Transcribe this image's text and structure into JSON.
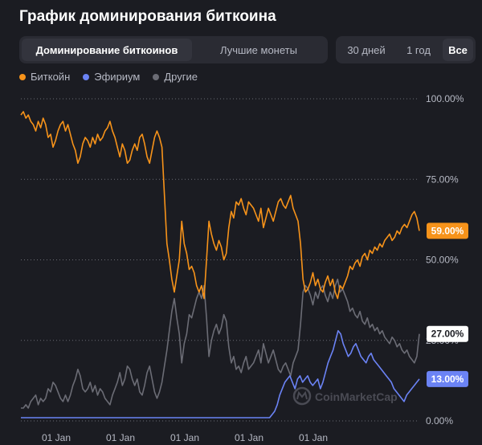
{
  "title": "График доминирования биткоина",
  "tabs": [
    {
      "label": "Доминирование биткоинов",
      "active": true
    },
    {
      "label": "Лучшие монеты",
      "active": false
    }
  ],
  "ranges": [
    {
      "label": "30 дней",
      "active": false
    },
    {
      "label": "1 год",
      "active": false
    },
    {
      "label": "Все",
      "active": true
    }
  ],
  "watermark": "CoinMarketCap",
  "colors": {
    "bitcoin": "#f7931a",
    "ethereum": "#6b83f5",
    "others": "#6b6c75"
  },
  "chart_data": {
    "type": "line",
    "ylim": [
      0,
      100
    ],
    "y_ticks": [
      "100.00%",
      "75.00%",
      "50.00%",
      "25.00%",
      "0.00%"
    ],
    "x_ticks": [
      "01 Jan",
      "01 Jan",
      "01 Jan",
      "01 Jan",
      "01 Jan"
    ],
    "legend": [
      "Биткойн",
      "Эфириум",
      "Другие"
    ],
    "legend_position": "top-left",
    "grid": true,
    "latest": {
      "bitcoin": "59.00%",
      "others": "27.00%",
      "ethereum": "13.00%"
    },
    "series": [
      {
        "name": "Биткойн",
        "color": "#f7931a",
        "values": [
          95,
          96,
          94,
          95,
          93,
          92,
          90,
          93,
          91,
          94,
          92,
          88,
          89,
          85,
          87,
          90,
          92,
          93,
          90,
          92,
          89,
          86,
          84,
          80,
          82,
          86,
          88,
          87,
          85,
          88,
          86,
          89,
          87,
          88,
          90,
          91,
          93,
          90,
          88,
          85,
          82,
          86,
          84,
          80,
          81,
          84,
          86,
          84,
          88,
          89,
          86,
          82,
          80,
          84,
          88,
          90,
          88,
          85,
          70,
          55,
          50,
          44,
          40,
          45,
          50,
          62,
          55,
          52,
          47,
          48,
          46,
          42,
          40,
          42,
          38,
          50,
          62,
          58,
          55,
          53,
          56,
          54,
          50,
          52,
          60,
          65,
          63,
          68,
          67,
          69,
          66,
          64,
          68,
          67,
          66,
          64,
          62,
          66,
          60,
          63,
          66,
          64,
          62,
          65,
          68,
          69,
          67,
          66,
          68,
          70,
          66,
          64,
          62,
          55,
          44,
          40,
          41,
          43,
          46,
          42,
          44,
          41,
          40,
          43,
          45,
          42,
          44,
          40,
          38,
          42,
          41,
          43,
          45,
          48,
          47,
          49,
          50,
          48,
          51,
          52,
          50,
          53,
          52,
          54,
          53,
          55,
          54,
          56,
          57,
          58,
          56,
          57,
          59,
          58,
          60,
          61,
          60,
          62,
          64,
          65,
          63,
          59
        ]
      },
      {
        "name": "Эфириум",
        "color": "#6b83f5",
        "values": [
          1,
          1,
          1,
          1,
          1,
          1,
          1,
          1,
          1,
          1,
          1,
          1,
          1,
          1,
          1,
          1,
          1,
          1,
          1,
          1,
          1,
          1,
          1,
          1,
          1,
          1,
          1,
          1,
          1,
          1,
          1,
          1,
          1,
          1,
          1,
          1,
          1,
          1,
          1,
          1,
          1,
          1,
          1,
          1,
          1,
          1,
          1,
          1,
          1,
          1,
          1,
          1,
          1,
          1,
          1,
          1,
          1,
          1,
          1,
          1,
          1,
          1,
          1,
          1,
          1,
          1,
          1,
          1,
          1,
          1,
          1,
          1,
          1,
          1,
          1,
          1,
          1,
          1,
          1,
          1,
          1,
          1,
          1,
          1,
          1,
          1,
          1,
          1,
          1,
          1,
          1,
          1,
          1,
          1,
          1,
          1,
          1,
          1,
          1,
          2,
          3,
          5,
          8,
          10,
          12,
          13,
          14,
          12,
          10,
          13,
          14,
          12,
          13,
          14,
          12,
          11,
          12,
          13,
          10,
          12,
          15,
          18,
          20,
          22,
          25,
          28,
          27,
          24,
          22,
          20,
          21,
          23,
          24,
          22,
          20,
          19,
          18,
          20,
          21,
          19,
          18,
          17,
          16,
          15,
          14,
          13,
          12,
          10,
          9,
          8,
          7,
          6,
          8,
          9,
          10,
          11,
          12,
          13
        ]
      },
      {
        "name": "Другие",
        "color": "#6b6c75",
        "values": [
          4,
          4,
          5,
          4,
          6,
          7,
          8,
          5,
          7,
          6,
          7,
          10,
          9,
          12,
          11,
          9,
          7,
          6,
          8,
          6,
          8,
          11,
          13,
          16,
          14,
          10,
          9,
          10,
          12,
          9,
          11,
          8,
          10,
          9,
          7,
          6,
          5,
          8,
          10,
          12,
          15,
          11,
          13,
          17,
          16,
          13,
          11,
          13,
          9,
          8,
          11,
          15,
          17,
          13,
          9,
          7,
          9,
          12,
          17,
          22,
          28,
          34,
          38,
          32,
          27,
          18,
          24,
          27,
          33,
          32,
          35,
          38,
          40,
          38,
          42,
          32,
          20,
          25,
          28,
          30,
          27,
          29,
          33,
          31,
          23,
          18,
          20,
          16,
          17,
          15,
          18,
          20,
          16,
          17,
          18,
          20,
          22,
          18,
          24,
          21,
          18,
          20,
          22,
          19,
          16,
          15,
          17,
          18,
          16,
          14,
          18,
          20,
          22,
          30,
          40,
          42,
          41,
          39,
          36,
          40,
          38,
          41,
          42,
          39,
          37,
          40,
          38,
          42,
          44,
          40,
          41,
          39,
          37,
          34,
          35,
          33,
          32,
          34,
          31,
          30,
          32,
          29,
          30,
          28,
          29,
          27,
          28,
          26,
          25,
          24,
          26,
          25,
          23,
          24,
          22,
          21,
          22,
          20,
          19,
          18,
          20,
          27
        ]
      }
    ]
  }
}
